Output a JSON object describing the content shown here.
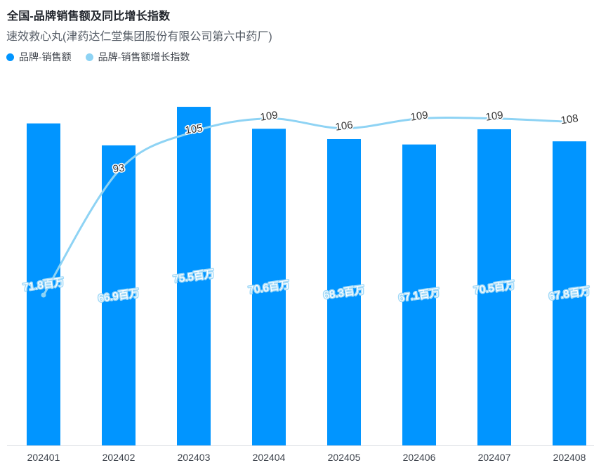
{
  "header": {
    "title": "全国-品牌销售额及同比增长指数",
    "subtitle": "速效救心丸(津药达仁堂集团股份有限公司第六中药厂)"
  },
  "legend": {
    "items": [
      {
        "label": "品牌-销售额",
        "color": "#0195ff"
      },
      {
        "label": "品牌-销售额增长指数",
        "color": "#8ed3f4"
      }
    ]
  },
  "chart_data": {
    "type": "combo",
    "title": "全国-品牌销售额及同比增长指数",
    "subtitle": "速效救心丸(津药达仁堂集团股份有限公司第六中药厂)",
    "categories": [
      "202401",
      "202402",
      "202403",
      "202404",
      "202405",
      "202406",
      "202407",
      "202408"
    ],
    "series": [
      {
        "name": "品牌-销售额",
        "type": "bar",
        "unit": "百万",
        "color": "#0195ff",
        "values": [
          71.8,
          66.9,
          75.5,
          70.6,
          68.3,
          67.1,
          70.5,
          67.8
        ],
        "labels": [
          "71.8百万",
          "66.9百万",
          "75.5百万",
          "70.6百万",
          "68.3百万",
          "67.1百万",
          "70.5百万",
          "67.8百万"
        ],
        "ylim": [
          0,
          86
        ],
        "label_position": "inside-middle"
      },
      {
        "name": "品牌-销售额增长指数",
        "type": "line",
        "color": "#8ed3f4",
        "smooth": true,
        "values": [
          55,
          93,
          105,
          109,
          106,
          109,
          109,
          108
        ],
        "labels": [
          "",
          "93",
          "105",
          "109",
          "106",
          "109",
          "109",
          "108"
        ],
        "ylim": [
          9,
          127
        ],
        "label_position": "top"
      }
    ],
    "grid": false,
    "legend_position": "top-left",
    "axis_line_color": "#dcdfe4",
    "label_rotation_deg": -8
  }
}
